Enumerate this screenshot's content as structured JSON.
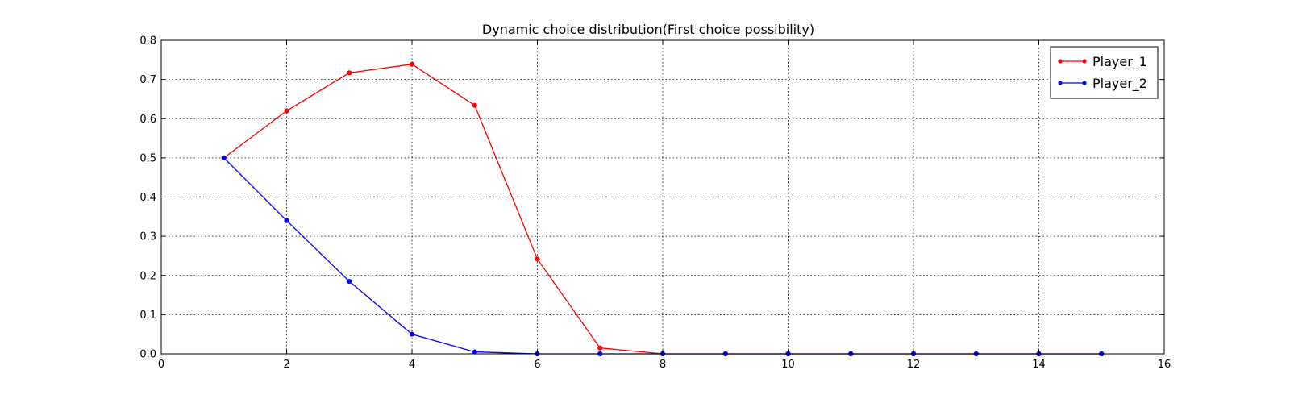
{
  "chart_data": {
    "type": "line",
    "title": "Dynamic choice distribution(First choice possibility)",
    "xlabel": "",
    "ylabel": "",
    "xlim": [
      0,
      16
    ],
    "ylim": [
      0,
      0.8
    ],
    "xticks": [
      0,
      2,
      4,
      6,
      8,
      10,
      12,
      14,
      16
    ],
    "xtick_labels": [
      "0",
      "2",
      "4",
      "6",
      "8",
      "10",
      "12",
      "14",
      "16"
    ],
    "yticks": [
      0,
      0.1,
      0.2,
      0.3,
      0.4,
      0.5,
      0.6,
      0.7,
      0.8
    ],
    "ytick_labels": [
      "0.0",
      "0.1",
      "0.2",
      "0.3",
      "0.4",
      "0.5",
      "0.6",
      "0.7",
      "0.8"
    ],
    "grid": true,
    "legend_position": "top-right",
    "series": [
      {
        "name": "Player_1",
        "color": "#ff0000",
        "x": [
          1,
          2,
          3,
          4,
          5,
          6,
          7,
          8,
          9,
          10,
          11,
          12,
          13,
          14,
          15
        ],
        "values": [
          0.5,
          0.62,
          0.717,
          0.739,
          0.634,
          0.242,
          0.015,
          0.0,
          0.0,
          0.0,
          0.0,
          0.0,
          0.0,
          0.0,
          0.0
        ]
      },
      {
        "name": "Player_2",
        "color": "#0000ff",
        "x": [
          1,
          2,
          3,
          4,
          5,
          6,
          7,
          8,
          9,
          10,
          11,
          12,
          13,
          14,
          15
        ],
        "values": [
          0.5,
          0.34,
          0.185,
          0.05,
          0.005,
          0.0,
          0.0,
          0.0,
          0.0,
          0.0,
          0.0,
          0.0,
          0.0,
          0.0,
          0.0
        ]
      }
    ]
  }
}
